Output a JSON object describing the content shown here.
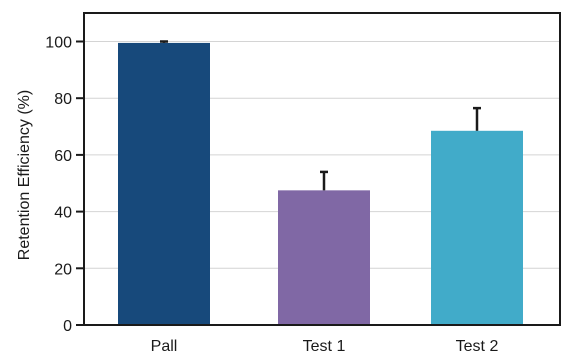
{
  "chart_data": {
    "type": "bar",
    "categories": [
      "Pall",
      "Test 1",
      "Test 2"
    ],
    "values": [
      99.5,
      47.5,
      68.5
    ],
    "error_plus": [
      0.5,
      6.5,
      8
    ],
    "colors": [
      "#17497b",
      "#8068a5",
      "#41abc9"
    ],
    "title": "",
    "xlabel": "",
    "ylabel": "Retention Efficiency (%)",
    "ylim": [
      0,
      100
    ],
    "yticks": [
      "0",
      "20",
      "40",
      "60",
      "80",
      "100"
    ],
    "grid": true,
    "legend": "none"
  }
}
